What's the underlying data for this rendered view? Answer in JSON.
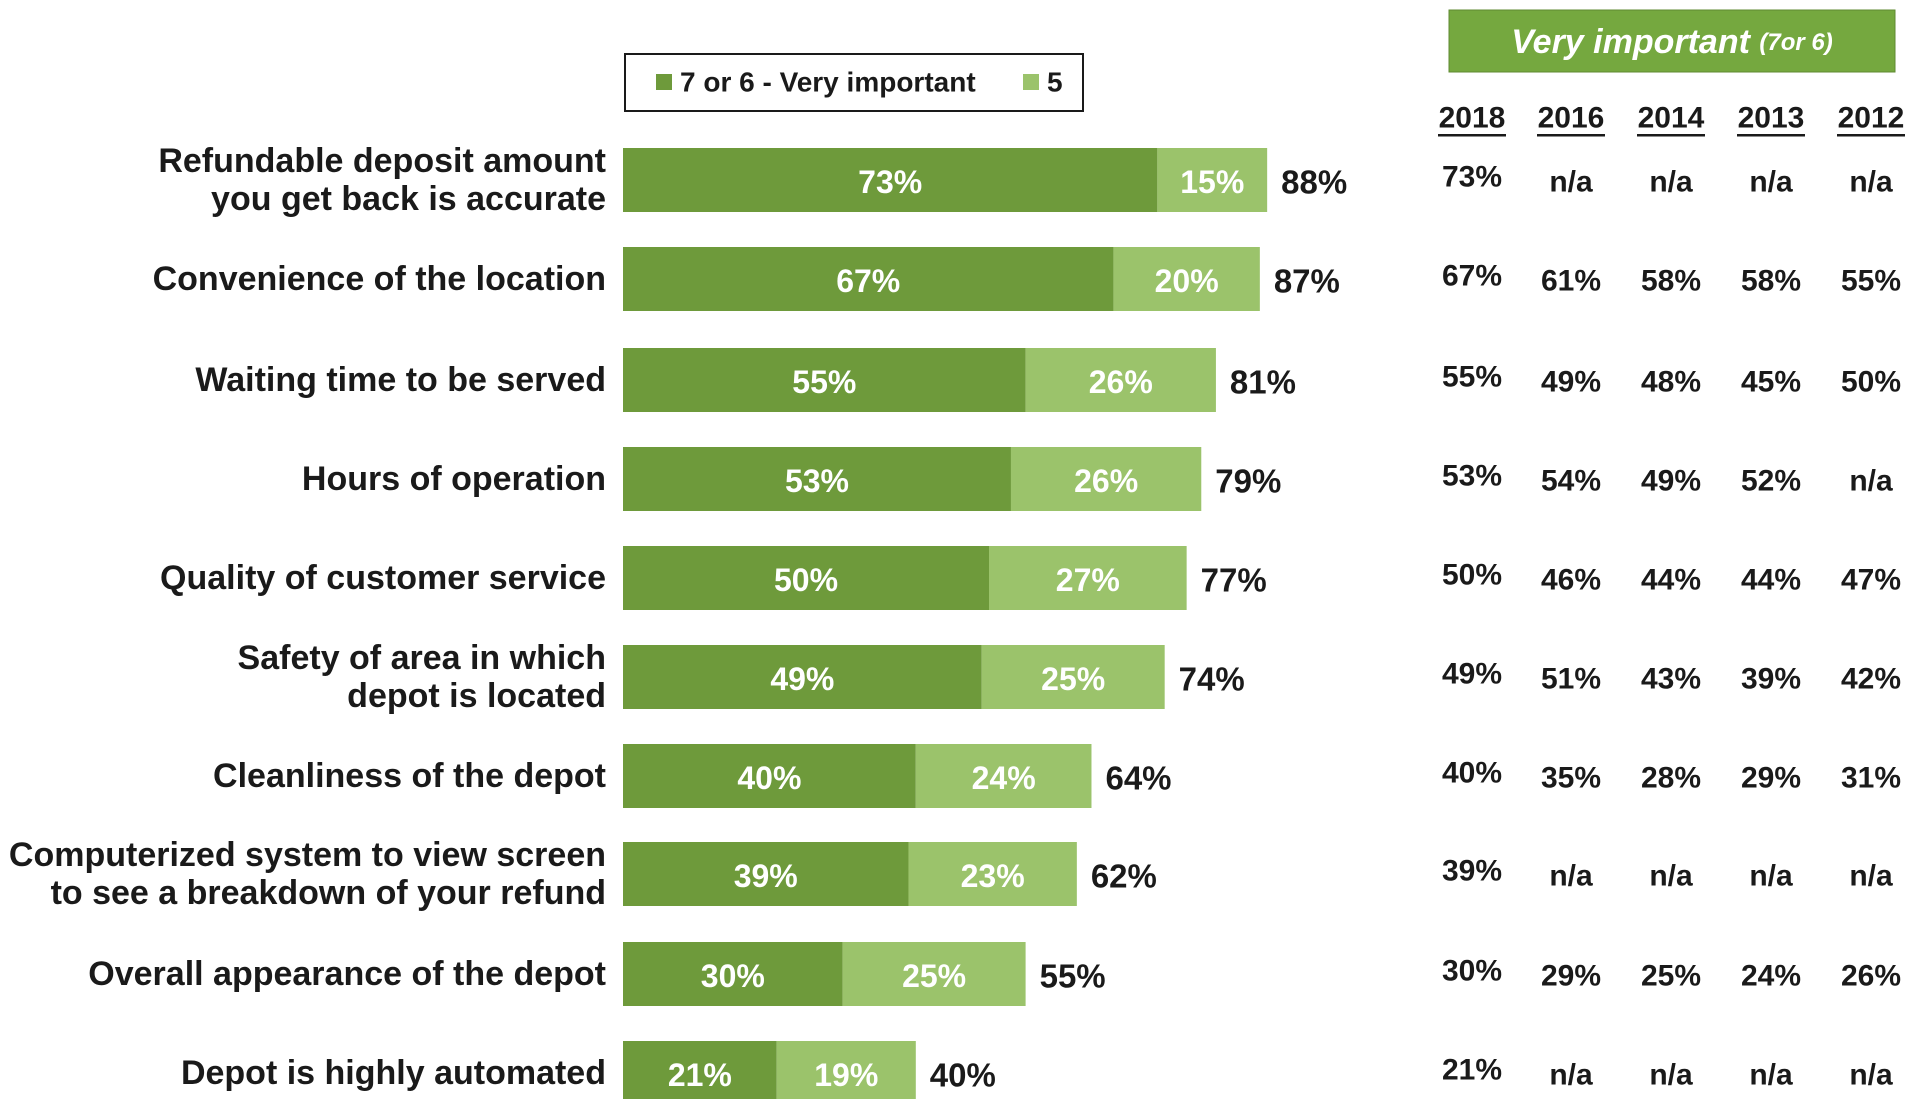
{
  "chart_data": {
    "type": "bar",
    "orientation": "horizontal",
    "stacked": true,
    "categories": [
      [
        "Refundable deposit amount",
        "you get back is accurate"
      ],
      [
        "Convenience of the location"
      ],
      [
        "Waiting time to be served"
      ],
      [
        "Hours of operation"
      ],
      [
        "Quality of customer service"
      ],
      [
        "Safety of area in which",
        "depot is located"
      ],
      [
        "Cleanliness of the depot"
      ],
      [
        "Computerized system to view screen",
        "to see a breakdown of your refund"
      ],
      [
        "Overall appearance of the depot"
      ],
      [
        "Depot is highly automated"
      ]
    ],
    "series": [
      {
        "name": "7 or 6 - Very important",
        "color": "#6e9a3b",
        "values": [
          73,
          67,
          55,
          53,
          50,
          49,
          40,
          39,
          30,
          21
        ]
      },
      {
        "name": "5",
        "color": "#9bc36b",
        "values": [
          15,
          20,
          26,
          26,
          27,
          25,
          24,
          23,
          25,
          19
        ]
      }
    ],
    "totals": [
      88,
      87,
      81,
      79,
      77,
      74,
      64,
      62,
      55,
      40
    ],
    "value_suffix": "%",
    "legend_position": "top",
    "grid": false,
    "xlim": [
      0,
      100
    ]
  },
  "table": {
    "header": {
      "title": "Very important",
      "subtitle": "(7or 6)",
      "color": "#75a83f"
    },
    "years": [
      "2018",
      "2016",
      "2014",
      "2013",
      "2012"
    ],
    "rows": [
      [
        "73%",
        "n/a",
        "n/a",
        "n/a",
        "n/a"
      ],
      [
        "67%",
        "61%",
        "58%",
        "58%",
        "55%"
      ],
      [
        "55%",
        "49%",
        "48%",
        "45%",
        "50%"
      ],
      [
        "53%",
        "54%",
        "49%",
        "52%",
        "n/a"
      ],
      [
        "50%",
        "46%",
        "44%",
        "44%",
        "47%"
      ],
      [
        "49%",
        "51%",
        "43%",
        "39%",
        "42%"
      ],
      [
        "40%",
        "35%",
        "28%",
        "29%",
        "31%"
      ],
      [
        "39%",
        "n/a",
        "n/a",
        "n/a",
        "n/a"
      ],
      [
        "30%",
        "29%",
        "25%",
        "24%",
        "26%"
      ],
      [
        "21%",
        "n/a",
        "n/a",
        "n/a",
        "n/a"
      ]
    ]
  }
}
